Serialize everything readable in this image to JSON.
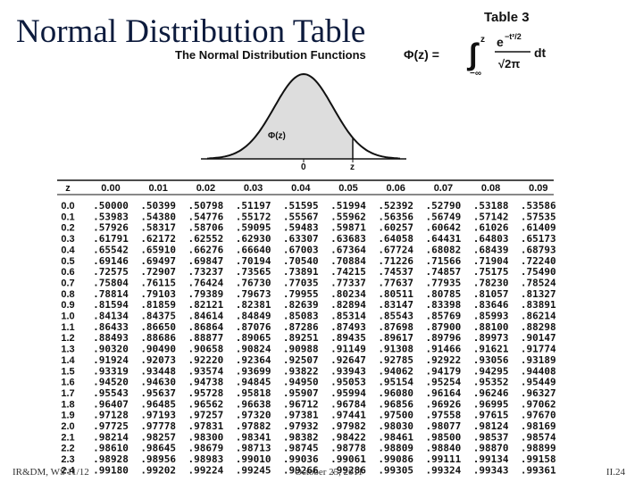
{
  "header": {
    "title": "Normal Distribution Table",
    "table_label": "Table 3",
    "caption": "The Normal Distribution Functions"
  },
  "formula": {
    "lhs": "Φ(z) =",
    "upper": "z",
    "lower": "−∞",
    "numerator": "e",
    "exponent": "−t²/2",
    "denominator": "√2π",
    "differential": "dt"
  },
  "graph": {
    "curve_label": "Φ(z)",
    "origin_label": "0",
    "z_label": "z"
  },
  "table": {
    "columns": [
      "z",
      "0.00",
      "0.01",
      "0.02",
      "0.03",
      "0.04",
      "0.05",
      "0.06",
      "0.07",
      "0.08",
      "0.09"
    ],
    "rows": [
      [
        "0.0",
        ".50000",
        ".50399",
        ".50798",
        ".51197",
        ".51595",
        ".51994",
        ".52392",
        ".52790",
        ".53188",
        ".53586"
      ],
      [
        "0.1",
        ".53983",
        ".54380",
        ".54776",
        ".55172",
        ".55567",
        ".55962",
        ".56356",
        ".56749",
        ".57142",
        ".57535"
      ],
      [
        "0.2",
        ".57926",
        ".58317",
        ".58706",
        ".59095",
        ".59483",
        ".59871",
        ".60257",
        ".60642",
        ".61026",
        ".61409"
      ],
      [
        "0.3",
        ".61791",
        ".62172",
        ".62552",
        ".62930",
        ".63307",
        ".63683",
        ".64058",
        ".64431",
        ".64803",
        ".65173"
      ],
      [
        "0.4",
        ".65542",
        ".65910",
        ".66276",
        ".66640",
        ".67003",
        ".67364",
        ".67724",
        ".68082",
        ".68439",
        ".68793"
      ],
      [
        "0.5",
        ".69146",
        ".69497",
        ".69847",
        ".70194",
        ".70540",
        ".70884",
        ".71226",
        ".71566",
        ".71904",
        ".72240"
      ],
      [
        "0.6",
        ".72575",
        ".72907",
        ".73237",
        ".73565",
        ".73891",
        ".74215",
        ".74537",
        ".74857",
        ".75175",
        ".75490"
      ],
      [
        "0.7",
        ".75804",
        ".76115",
        ".76424",
        ".76730",
        ".77035",
        ".77337",
        ".77637",
        ".77935",
        ".78230",
        ".78524"
      ],
      [
        "0.8",
        ".78814",
        ".79103",
        ".79389",
        ".79673",
        ".79955",
        ".80234",
        ".80511",
        ".80785",
        ".81057",
        ".81327"
      ],
      [
        "0.9",
        ".81594",
        ".81859",
        ".82121",
        ".82381",
        ".82639",
        ".82894",
        ".83147",
        ".83398",
        ".83646",
        ".83891"
      ],
      [
        "1.0",
        ".84134",
        ".84375",
        ".84614",
        ".84849",
        ".85083",
        ".85314",
        ".85543",
        ".85769",
        ".85993",
        ".86214"
      ],
      [
        "1.1",
        ".86433",
        ".86650",
        ".86864",
        ".87076",
        ".87286",
        ".87493",
        ".87698",
        ".87900",
        ".88100",
        ".88298"
      ],
      [
        "1.2",
        ".88493",
        ".88686",
        ".88877",
        ".89065",
        ".89251",
        ".89435",
        ".89617",
        ".89796",
        ".89973",
        ".90147"
      ],
      [
        "1.3",
        ".90320",
        ".90490",
        ".90658",
        ".90824",
        ".90988",
        ".91149",
        ".91308",
        ".91466",
        ".91621",
        ".91774"
      ],
      [
        "1.4",
        ".91924",
        ".92073",
        ".92220",
        ".92364",
        ".92507",
        ".92647",
        ".92785",
        ".92922",
        ".93056",
        ".93189"
      ],
      [
        "1.5",
        ".93319",
        ".93448",
        ".93574",
        ".93699",
        ".93822",
        ".93943",
        ".94062",
        ".94179",
        ".94295",
        ".94408"
      ],
      [
        "1.6",
        ".94520",
        ".94630",
        ".94738",
        ".94845",
        ".94950",
        ".95053",
        ".95154",
        ".95254",
        ".95352",
        ".95449"
      ],
      [
        "1.7",
        ".95543",
        ".95637",
        ".95728",
        ".95818",
        ".95907",
        ".95994",
        ".96080",
        ".96164",
        ".96246",
        ".96327"
      ],
      [
        "1.8",
        ".96407",
        ".96485",
        ".96562",
        ".96638",
        ".96712",
        ".96784",
        ".96856",
        ".96926",
        ".96995",
        ".97062"
      ],
      [
        "1.9",
        ".97128",
        ".97193",
        ".97257",
        ".97320",
        ".97381",
        ".97441",
        ".97500",
        ".97558",
        ".97615",
        ".97670"
      ],
      [
        "2.0",
        ".97725",
        ".97778",
        ".97831",
        ".97882",
        ".97932",
        ".97982",
        ".98030",
        ".98077",
        ".98124",
        ".98169"
      ],
      [
        "2.1",
        ".98214",
        ".98257",
        ".98300",
        ".98341",
        ".98382",
        ".98422",
        ".98461",
        ".98500",
        ".98537",
        ".98574"
      ],
      [
        "2.2",
        ".98610",
        ".98645",
        ".98679",
        ".98713",
        ".98745",
        ".98778",
        ".98809",
        ".98840",
        ".98870",
        ".98899"
      ],
      [
        "2.3",
        ".98928",
        ".98956",
        ".98983",
        ".99010",
        ".99036",
        ".99061",
        ".99086",
        ".99111",
        ".99134",
        ".99158"
      ],
      [
        "2.4",
        ".99180",
        ".99202",
        ".99224",
        ".99245",
        ".99266",
        ".99286",
        ".99305",
        ".99324",
        ".99343",
        ".99361"
      ]
    ]
  },
  "footer": {
    "left": "IR&DM, WS'11/12",
    "center": "October 25, 2011",
    "right": "II.24"
  }
}
